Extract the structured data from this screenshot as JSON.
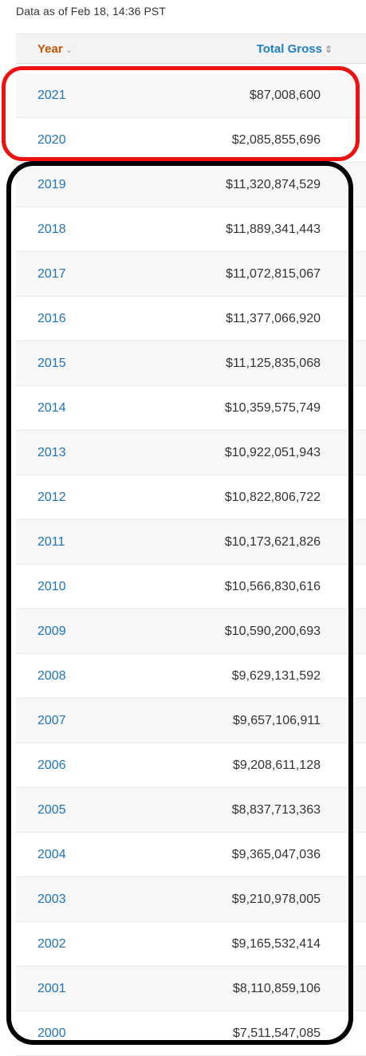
{
  "as_of": "Data as of Feb 18, 14:36 PST",
  "table": {
    "headers": {
      "year": "Year",
      "year_icon": "chevron-down-icon",
      "total_gross": "Total Gross",
      "total_gross_icon": "sort-icon"
    },
    "rows": [
      {
        "year": "2021",
        "total_gross": "$87,008,600"
      },
      {
        "year": "2020",
        "total_gross": "$2,085,855,696"
      },
      {
        "year": "2019",
        "total_gross": "$11,320,874,529"
      },
      {
        "year": "2018",
        "total_gross": "$11,889,341,443"
      },
      {
        "year": "2017",
        "total_gross": "$11,072,815,067"
      },
      {
        "year": "2016",
        "total_gross": "$11,377,066,920"
      },
      {
        "year": "2015",
        "total_gross": "$11,125,835,068"
      },
      {
        "year": "2014",
        "total_gross": "$10,359,575,749"
      },
      {
        "year": "2013",
        "total_gross": "$10,922,051,943"
      },
      {
        "year": "2012",
        "total_gross": "$10,822,806,722"
      },
      {
        "year": "2011",
        "total_gross": "$10,173,621,826"
      },
      {
        "year": "2010",
        "total_gross": "$10,566,830,616"
      },
      {
        "year": "2009",
        "total_gross": "$10,590,200,693"
      },
      {
        "year": "2008",
        "total_gross": "$9,629,131,592"
      },
      {
        "year": "2007",
        "total_gross": "$9,657,106,911"
      },
      {
        "year": "2006",
        "total_gross": "$9,208,611,128"
      },
      {
        "year": "2005",
        "total_gross": "$8,837,713,363"
      },
      {
        "year": "2004",
        "total_gross": "$9,365,047,036"
      },
      {
        "year": "2003",
        "total_gross": "$9,210,978,005"
      },
      {
        "year": "2002",
        "total_gross": "$9,165,532,414"
      },
      {
        "year": "2001",
        "total_gross": "$8,110,859,106"
      },
      {
        "year": "2000",
        "total_gross": "$7,511,547,085"
      }
    ]
  },
  "colors": {
    "year_header": "#c45500",
    "link": "#1f73b7",
    "highlight_red": "#ee1111",
    "highlight_black": "#000000"
  }
}
